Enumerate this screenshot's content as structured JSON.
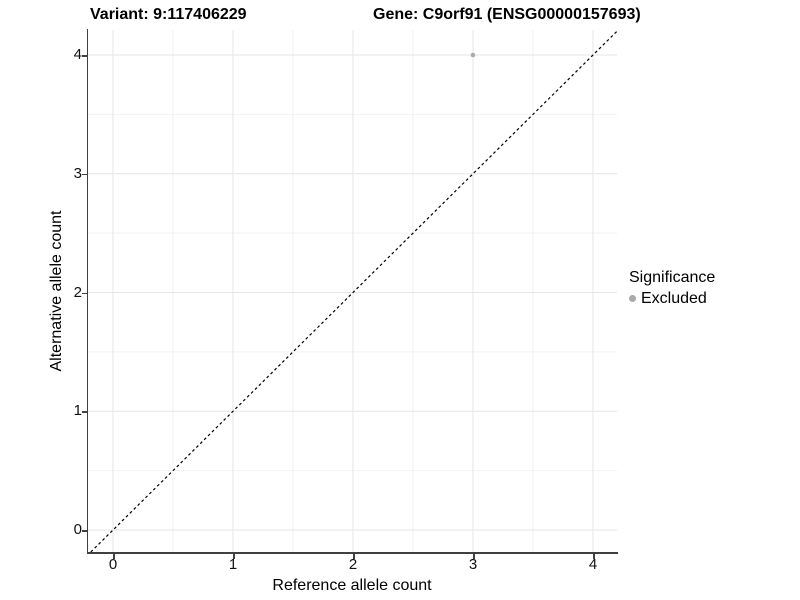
{
  "chart_data": {
    "type": "scatter",
    "title_variant": "Variant: 9:117406229",
    "title_gene": "Gene: C9orf91 (ENSG00000157693)",
    "xlabel": "Reference allele count",
    "ylabel": "Alternative allele count",
    "xlim": [
      -0.21,
      4.21
    ],
    "ylim": [
      -0.19,
      4.21
    ],
    "x_ticks": [
      0,
      1,
      2,
      3,
      4
    ],
    "y_ticks": [
      0,
      1,
      2,
      3,
      4
    ],
    "grid": {
      "major": true,
      "minor": true,
      "major_color": "#e6e6e6",
      "minor_color": "#f2f2f2"
    },
    "reference_line": {
      "slope": 1,
      "intercept": 0,
      "style": "dashed",
      "color": "#000000"
    },
    "series": [
      {
        "name": "Excluded",
        "color": "#ababab",
        "points": [
          [
            3,
            4
          ]
        ]
      }
    ],
    "legend": {
      "title": "Significance",
      "position": "right",
      "entries": [
        {
          "label": "Excluded",
          "color": "#a9a9a9"
        }
      ]
    }
  }
}
